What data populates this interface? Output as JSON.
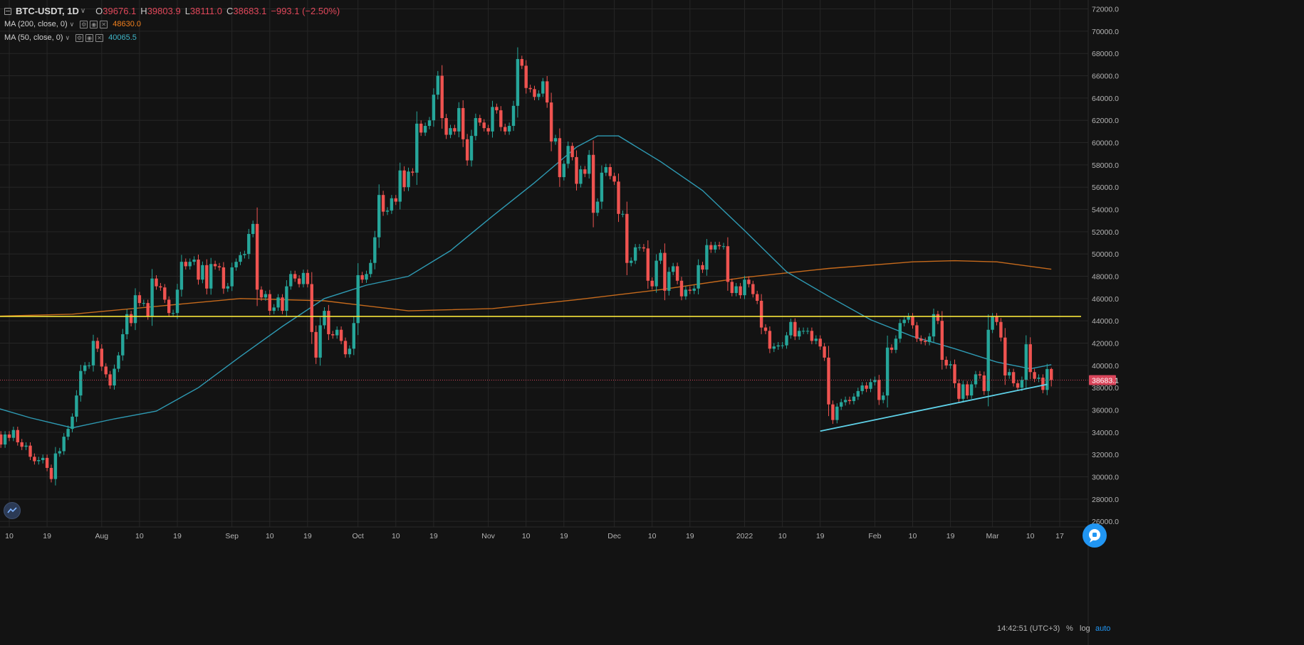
{
  "legend": {
    "symbol": "BTC-USDT, 1D",
    "open_label": "O",
    "open": "39676.1",
    "high_label": "H",
    "high": "39803.9",
    "low_label": "L",
    "low": "38111.0",
    "close_label": "C",
    "close": "38683.1",
    "change": "−993.1 (−2.50%)",
    "ma200": {
      "label": "MA (200, close, 0)",
      "value": "48630.0",
      "color": "#f2801d"
    },
    "ma50": {
      "label": "MA (50, close, 0)",
      "value": "40065.5",
      "color": "#3fb5c8"
    }
  },
  "colors": {
    "background": "#131313",
    "grid": "#262626",
    "up": "#26a69a",
    "down": "#ef5350",
    "ma200": "#c66a1c",
    "ma50": "#2e9ab3",
    "support": "#f5e33a",
    "trendline": "#5fd3ea",
    "price_line": "#d0455a"
  },
  "footer": {
    "time": "14:42:51 (UTC+3)",
    "percent": "%",
    "log": "log",
    "auto": "auto"
  },
  "chart_data": {
    "type": "candlestick",
    "timeframe": "1D",
    "ylim": [
      25500,
      72800
    ],
    "y_ticks": [
      26000,
      28000,
      30000,
      32000,
      34000,
      36000,
      38000,
      40000,
      42000,
      44000,
      46000,
      48000,
      50000,
      52000,
      54000,
      56000,
      58000,
      60000,
      62000,
      64000,
      66000,
      68000,
      70000,
      72000
    ],
    "y_tick_labels": [
      "26000.0",
      "28000.0",
      "30000.0",
      "32000.0",
      "34000.0",
      "36000.0",
      "38000.0",
      "40000.0",
      "42000.0",
      "44000.0",
      "46000.0",
      "48000.0",
      "50000.0",
      "52000.0",
      "54000.0",
      "56000.0",
      "58000.0",
      "60000.0",
      "62000.0",
      "64000.0",
      "66000.0",
      "68000.0",
      "70000.0",
      "72000.0"
    ],
    "x_ticks": [
      {
        "date": "2021-07-10",
        "label": "10"
      },
      {
        "date": "2021-07-19",
        "label": "19"
      },
      {
        "date": "2021-08-01",
        "label": "Aug"
      },
      {
        "date": "2021-08-10",
        "label": "10"
      },
      {
        "date": "2021-08-19",
        "label": "19"
      },
      {
        "date": "2021-09-01",
        "label": "Sep"
      },
      {
        "date": "2021-09-10",
        "label": "10"
      },
      {
        "date": "2021-09-19",
        "label": "19"
      },
      {
        "date": "2021-10-01",
        "label": "Oct"
      },
      {
        "date": "2021-10-10",
        "label": "10"
      },
      {
        "date": "2021-10-19",
        "label": "19"
      },
      {
        "date": "2021-11-01",
        "label": "Nov"
      },
      {
        "date": "2021-11-10",
        "label": "10"
      },
      {
        "date": "2021-11-19",
        "label": "19"
      },
      {
        "date": "2021-12-01",
        "label": "Dec"
      },
      {
        "date": "2021-12-10",
        "label": "10"
      },
      {
        "date": "2021-12-19",
        "label": "19"
      },
      {
        "date": "2022-01-01",
        "label": "2022"
      },
      {
        "date": "2022-01-10",
        "label": "10"
      },
      {
        "date": "2022-01-19",
        "label": "19"
      },
      {
        "date": "2022-02-01",
        "label": "Feb"
      },
      {
        "date": "2022-02-10",
        "label": "10"
      },
      {
        "date": "2022-02-19",
        "label": "19"
      },
      {
        "date": "2022-03-01",
        "label": "Mar"
      },
      {
        "date": "2022-03-10",
        "label": "10"
      },
      {
        "date": "2022-03-17",
        "label": "17"
      }
    ],
    "last_price": 38683.1,
    "last_price_label": "38683.1",
    "horizontal_line": 44400,
    "trendline": [
      {
        "date": "2022-01-19",
        "value": 34100
      },
      {
        "date": "2022-03-14",
        "value": 38300
      }
    ],
    "closes": [
      [
        "2021-07-05",
        33900
      ],
      [
        "2021-07-06",
        34200
      ],
      [
        "2021-07-07",
        33800
      ],
      [
        "2021-07-08",
        32900
      ],
      [
        "2021-07-09",
        33800
      ],
      [
        "2021-07-10",
        33500
      ],
      [
        "2021-07-11",
        34200
      ],
      [
        "2021-07-12",
        33100
      ],
      [
        "2021-07-13",
        32700
      ],
      [
        "2021-07-14",
        32800
      ],
      [
        "2021-07-15",
        31800
      ],
      [
        "2021-07-16",
        31400
      ],
      [
        "2021-07-17",
        31500
      ],
      [
        "2021-07-18",
        31700
      ],
      [
        "2021-07-19",
        30800
      ],
      [
        "2021-07-20",
        29800
      ],
      [
        "2021-07-21",
        32100
      ],
      [
        "2021-07-22",
        32300
      ],
      [
        "2021-07-23",
        33600
      ],
      [
        "2021-07-24",
        34300
      ],
      [
        "2021-07-25",
        35400
      ],
      [
        "2021-07-26",
        37300
      ],
      [
        "2021-07-27",
        39500
      ],
      [
        "2021-07-28",
        40000
      ],
      [
        "2021-07-29",
        40000
      ],
      [
        "2021-07-30",
        42200
      ],
      [
        "2021-07-31",
        41500
      ],
      [
        "2021-08-01",
        39900
      ],
      [
        "2021-08-02",
        39200
      ],
      [
        "2021-08-03",
        38200
      ],
      [
        "2021-08-04",
        39700
      ],
      [
        "2021-08-05",
        40900
      ],
      [
        "2021-08-06",
        42800
      ],
      [
        "2021-08-07",
        44600
      ],
      [
        "2021-08-08",
        43800
      ],
      [
        "2021-08-09",
        46300
      ],
      [
        "2021-08-10",
        45600
      ],
      [
        "2021-08-11",
        45600
      ],
      [
        "2021-08-12",
        44400
      ],
      [
        "2021-08-13",
        47800
      ],
      [
        "2021-08-14",
        47100
      ],
      [
        "2021-08-15",
        47000
      ],
      [
        "2021-08-16",
        45900
      ],
      [
        "2021-08-17",
        44700
      ],
      [
        "2021-08-18",
        44700
      ],
      [
        "2021-08-19",
        46800
      ],
      [
        "2021-08-20",
        49300
      ],
      [
        "2021-08-21",
        48900
      ],
      [
        "2021-08-22",
        49300
      ],
      [
        "2021-08-23",
        49500
      ],
      [
        "2021-08-24",
        47700
      ],
      [
        "2021-08-25",
        49000
      ],
      [
        "2021-08-26",
        46900
      ],
      [
        "2021-08-27",
        49100
      ],
      [
        "2021-08-28",
        48900
      ],
      [
        "2021-08-29",
        48800
      ],
      [
        "2021-08-30",
        46900
      ],
      [
        "2021-08-31",
        47100
      ],
      [
        "2021-09-01",
        48800
      ],
      [
        "2021-09-02",
        49300
      ],
      [
        "2021-09-03",
        49900
      ],
      [
        "2021-09-04",
        50000
      ],
      [
        "2021-09-05",
        51800
      ],
      [
        "2021-09-06",
        52700
      ],
      [
        "2021-09-07",
        46800
      ],
      [
        "2021-09-08",
        46100
      ],
      [
        "2021-09-09",
        46400
      ],
      [
        "2021-09-10",
        44900
      ],
      [
        "2021-09-11",
        45200
      ],
      [
        "2021-09-12",
        46100
      ],
      [
        "2021-09-13",
        44900
      ],
      [
        "2021-09-14",
        47100
      ],
      [
        "2021-09-15",
        48200
      ],
      [
        "2021-09-16",
        47800
      ],
      [
        "2021-09-17",
        47300
      ],
      [
        "2021-09-18",
        48300
      ],
      [
        "2021-09-19",
        47300
      ],
      [
        "2021-09-20",
        43000
      ],
      [
        "2021-09-21",
        40700
      ],
      [
        "2021-09-22",
        43600
      ],
      [
        "2021-09-23",
        44900
      ],
      [
        "2021-09-24",
        42800
      ],
      [
        "2021-09-25",
        42700
      ],
      [
        "2021-09-26",
        43200
      ],
      [
        "2021-09-27",
        42200
      ],
      [
        "2021-09-28",
        41000
      ],
      [
        "2021-09-29",
        41500
      ],
      [
        "2021-09-30",
        43800
      ],
      [
        "2021-10-01",
        48100
      ],
      [
        "2021-10-02",
        47700
      ],
      [
        "2021-10-03",
        48200
      ],
      [
        "2021-10-04",
        49200
      ],
      [
        "2021-10-05",
        51500
      ],
      [
        "2021-10-06",
        55300
      ],
      [
        "2021-10-07",
        53800
      ],
      [
        "2021-10-08",
        53900
      ],
      [
        "2021-10-09",
        55000
      ],
      [
        "2021-10-10",
        54700
      ],
      [
        "2021-10-11",
        57500
      ],
      [
        "2021-10-12",
        56000
      ],
      [
        "2021-10-13",
        57400
      ],
      [
        "2021-10-14",
        57300
      ],
      [
        "2021-10-15",
        61700
      ],
      [
        "2021-10-16",
        60900
      ],
      [
        "2021-10-17",
        61500
      ],
      [
        "2021-10-18",
        62000
      ],
      [
        "2021-10-19",
        64300
      ],
      [
        "2021-10-20",
        66000
      ],
      [
        "2021-10-21",
        62200
      ],
      [
        "2021-10-22",
        60700
      ],
      [
        "2021-10-23",
        61300
      ],
      [
        "2021-10-24",
        61000
      ],
      [
        "2021-10-25",
        63100
      ],
      [
        "2021-10-26",
        60300
      ],
      [
        "2021-10-27",
        58400
      ],
      [
        "2021-10-28",
        60600
      ],
      [
        "2021-10-29",
        62200
      ],
      [
        "2021-10-30",
        61800
      ],
      [
        "2021-10-31",
        61300
      ],
      [
        "2021-11-01",
        61000
      ],
      [
        "2021-11-02",
        63200
      ],
      [
        "2021-11-03",
        62900
      ],
      [
        "2021-11-04",
        61400
      ],
      [
        "2021-11-05",
        61000
      ],
      [
        "2021-11-06",
        61500
      ],
      [
        "2021-11-07",
        63300
      ],
      [
        "2021-11-08",
        67500
      ],
      [
        "2021-11-09",
        66900
      ],
      [
        "2021-11-10",
        64900
      ],
      [
        "2021-11-11",
        64800
      ],
      [
        "2021-11-12",
        64100
      ],
      [
        "2021-11-13",
        64400
      ],
      [
        "2021-11-14",
        65500
      ],
      [
        "2021-11-15",
        63600
      ],
      [
        "2021-11-16",
        60100
      ],
      [
        "2021-11-17",
        60400
      ],
      [
        "2021-11-18",
        56900
      ],
      [
        "2021-11-19",
        58100
      ],
      [
        "2021-11-20",
        59700
      ],
      [
        "2021-11-21",
        58700
      ],
      [
        "2021-11-22",
        56300
      ],
      [
        "2021-11-23",
        57600
      ],
      [
        "2021-11-24",
        57200
      ],
      [
        "2021-11-25",
        58900
      ],
      [
        "2021-11-26",
        53700
      ],
      [
        "2021-11-27",
        54700
      ],
      [
        "2021-11-28",
        57300
      ],
      [
        "2021-11-29",
        57800
      ],
      [
        "2021-11-30",
        57000
      ],
      [
        "2021-12-01",
        56500
      ],
      [
        "2021-12-02",
        53600
      ],
      [
        "2021-12-03",
        53600
      ],
      [
        "2021-12-04",
        49200
      ],
      [
        "2021-12-05",
        49400
      ],
      [
        "2021-12-06",
        50600
      ],
      [
        "2021-12-07",
        50600
      ],
      [
        "2021-12-08",
        50500
      ],
      [
        "2021-12-09",
        47600
      ],
      [
        "2021-12-10",
        47100
      ],
      [
        "2021-12-11",
        49400
      ],
      [
        "2021-12-12",
        50100
      ],
      [
        "2021-12-13",
        46700
      ],
      [
        "2021-12-14",
        48400
      ],
      [
        "2021-12-15",
        48900
      ],
      [
        "2021-12-16",
        47600
      ],
      [
        "2021-12-17",
        46200
      ],
      [
        "2021-12-18",
        46800
      ],
      [
        "2021-12-19",
        46700
      ],
      [
        "2021-12-20",
        46900
      ],
      [
        "2021-12-21",
        49000
      ],
      [
        "2021-12-22",
        48600
      ],
      [
        "2021-12-23",
        50800
      ],
      [
        "2021-12-24",
        50400
      ],
      [
        "2021-12-25",
        50800
      ],
      [
        "2021-12-26",
        50700
      ],
      [
        "2021-12-27",
        50700
      ],
      [
        "2021-12-28",
        47500
      ],
      [
        "2021-12-29",
        46500
      ],
      [
        "2021-12-30",
        47100
      ],
      [
        "2021-12-31",
        46300
      ],
      [
        "2022-01-01",
        47700
      ],
      [
        "2022-01-02",
        47300
      ],
      [
        "2022-01-03",
        46400
      ],
      [
        "2022-01-04",
        45800
      ],
      [
        "2022-01-05",
        43400
      ],
      [
        "2022-01-06",
        43100
      ],
      [
        "2022-01-07",
        41500
      ],
      [
        "2022-01-08",
        41700
      ],
      [
        "2022-01-09",
        41800
      ],
      [
        "2022-01-10",
        41800
      ],
      [
        "2022-01-11",
        42700
      ],
      [
        "2022-01-12",
        43900
      ],
      [
        "2022-01-13",
        42600
      ],
      [
        "2022-01-14",
        43100
      ],
      [
        "2022-01-15",
        43100
      ],
      [
        "2022-01-16",
        43100
      ],
      [
        "2022-01-17",
        42200
      ],
      [
        "2022-01-18",
        42400
      ],
      [
        "2022-01-19",
        41700
      ],
      [
        "2022-01-20",
        40700
      ],
      [
        "2022-01-21",
        36500
      ],
      [
        "2022-01-22",
        35100
      ],
      [
        "2022-01-23",
        36300
      ],
      [
        "2022-01-24",
        36700
      ],
      [
        "2022-01-25",
        36900
      ],
      [
        "2022-01-26",
        36800
      ],
      [
        "2022-01-27",
        37200
      ],
      [
        "2022-01-28",
        37700
      ],
      [
        "2022-01-29",
        38200
      ],
      [
        "2022-01-30",
        37900
      ],
      [
        "2022-01-31",
        38500
      ],
      [
        "2022-02-01",
        38700
      ],
      [
        "2022-02-02",
        36900
      ],
      [
        "2022-02-03",
        37300
      ],
      [
        "2022-02-04",
        41600
      ],
      [
        "2022-02-05",
        41400
      ],
      [
        "2022-02-06",
        42400
      ],
      [
        "2022-02-07",
        43800
      ],
      [
        "2022-02-08",
        44100
      ],
      [
        "2022-02-09",
        44400
      ],
      [
        "2022-02-10",
        43600
      ],
      [
        "2022-02-11",
        42400
      ],
      [
        "2022-02-12",
        42200
      ],
      [
        "2022-02-13",
        42100
      ],
      [
        "2022-02-14",
        42600
      ],
      [
        "2022-02-15",
        44600
      ],
      [
        "2022-02-16",
        44000
      ],
      [
        "2022-02-17",
        40500
      ],
      [
        "2022-02-18",
        40000
      ],
      [
        "2022-02-19",
        40100
      ],
      [
        "2022-02-20",
        38400
      ],
      [
        "2022-02-21",
        37000
      ],
      [
        "2022-02-22",
        38300
      ],
      [
        "2022-02-23",
        37300
      ],
      [
        "2022-02-24",
        38300
      ],
      [
        "2022-02-25",
        39200
      ],
      [
        "2022-02-26",
        39100
      ],
      [
        "2022-02-27",
        37700
      ],
      [
        "2022-02-28",
        43200
      ],
      [
        "2022-03-01",
        44400
      ],
      [
        "2022-03-02",
        43900
      ],
      [
        "2022-03-03",
        42500
      ],
      [
        "2022-03-04",
        39100
      ],
      [
        "2022-03-05",
        39400
      ],
      [
        "2022-03-06",
        38400
      ],
      [
        "2022-03-07",
        38000
      ],
      [
        "2022-03-08",
        38700
      ],
      [
        "2022-03-09",
        41900
      ],
      [
        "2022-03-10",
        39400
      ],
      [
        "2022-03-11",
        38800
      ],
      [
        "2022-03-12",
        38900
      ],
      [
        "2022-03-13",
        37800
      ],
      [
        "2022-03-14",
        39676.1
      ],
      [
        "2022-03-15",
        38683.1
      ]
    ],
    "ma50": [
      [
        "2021-07-05",
        36400
      ],
      [
        "2021-07-15",
        35300
      ],
      [
        "2021-07-25",
        34400
      ],
      [
        "2021-08-04",
        35200
      ],
      [
        "2021-08-14",
        35900
      ],
      [
        "2021-08-24",
        38000
      ],
      [
        "2021-09-03",
        40800
      ],
      [
        "2021-09-13",
        43500
      ],
      [
        "2021-09-23",
        46000
      ],
      [
        "2021-10-03",
        47200
      ],
      [
        "2021-10-13",
        48000
      ],
      [
        "2021-10-23",
        50300
      ],
      [
        "2021-11-02",
        53400
      ],
      [
        "2021-11-12",
        56400
      ],
      [
        "2021-11-22",
        59600
      ],
      [
        "2021-11-27",
        60600
      ],
      [
        "2021-12-02",
        60600
      ],
      [
        "2021-12-12",
        58300
      ],
      [
        "2021-12-22",
        55700
      ],
      [
        "2022-01-01",
        52100
      ],
      [
        "2022-01-11",
        48400
      ],
      [
        "2022-01-21",
        46200
      ],
      [
        "2022-01-31",
        44100
      ],
      [
        "2022-02-10",
        42600
      ],
      [
        "2022-02-20",
        41500
      ],
      [
        "2022-03-02",
        40300
      ],
      [
        "2022-03-10",
        39700
      ],
      [
        "2022-03-15",
        40065.5
      ]
    ],
    "ma200": [
      [
        "2021-07-05",
        44400
      ],
      [
        "2021-07-25",
        44600
      ],
      [
        "2021-08-14",
        45300
      ],
      [
        "2021-09-03",
        46000
      ],
      [
        "2021-09-23",
        45800
      ],
      [
        "2021-10-13",
        44900
      ],
      [
        "2021-11-02",
        45100
      ],
      [
        "2021-11-22",
        45900
      ],
      [
        "2021-12-12",
        46800
      ],
      [
        "2022-01-01",
        47900
      ],
      [
        "2022-01-21",
        48700
      ],
      [
        "2022-02-10",
        49300
      ],
      [
        "2022-02-20",
        49400
      ],
      [
        "2022-03-02",
        49300
      ],
      [
        "2022-03-15",
        48630.0
      ]
    ]
  }
}
